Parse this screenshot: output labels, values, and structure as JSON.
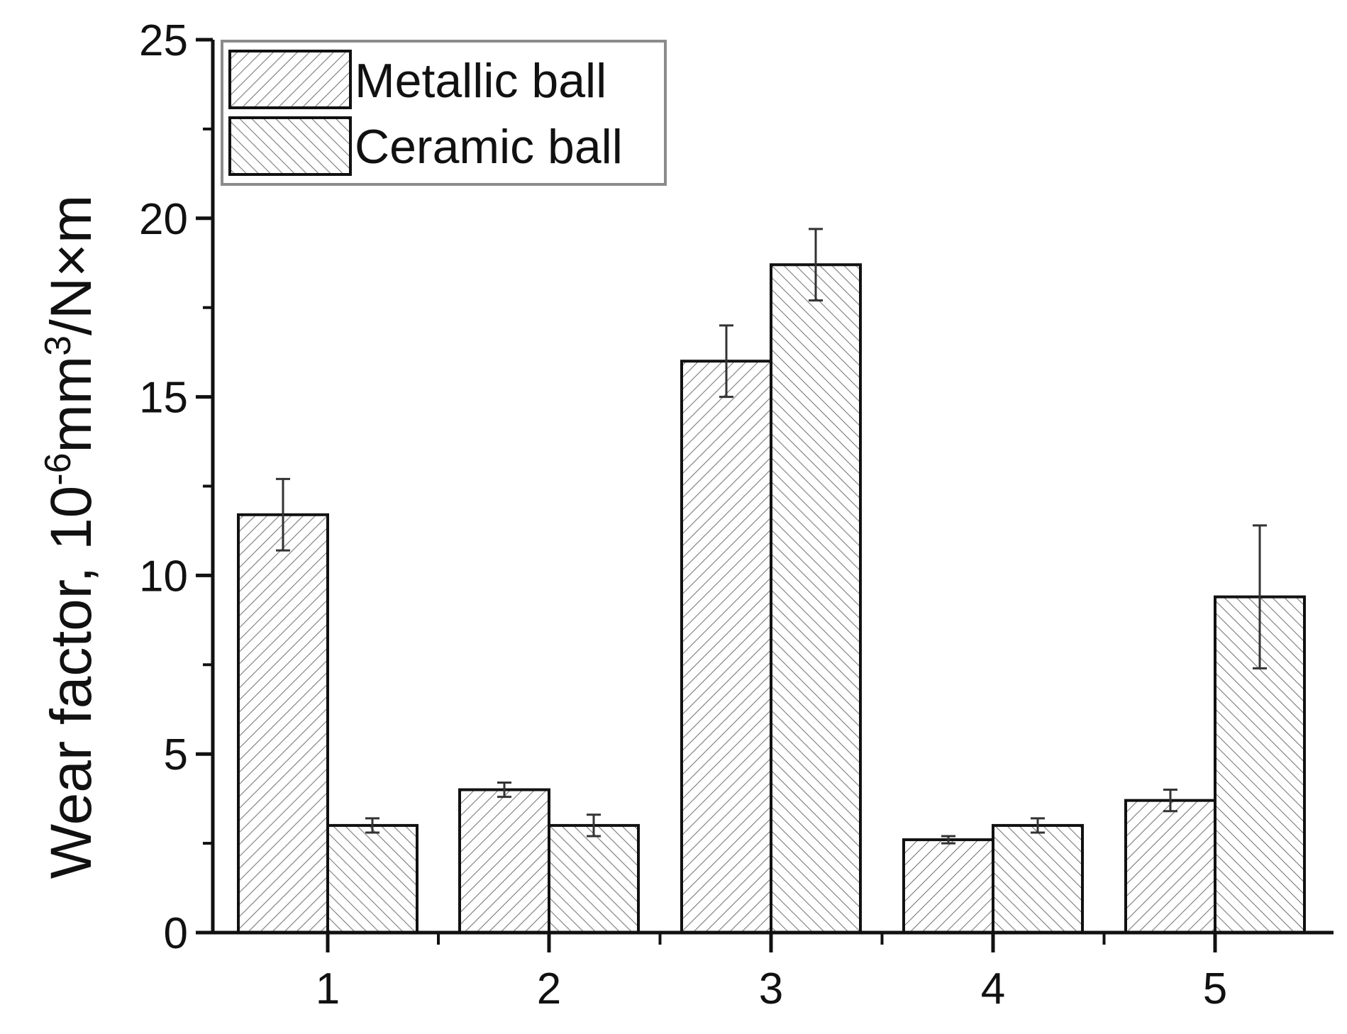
{
  "chart_data": {
    "type": "bar",
    "title": "",
    "xlabel": "",
    "ylabel_main": "Wear factor, 10",
    "ylabel_exp1": "-6",
    "ylabel_mid": "mm",
    "ylabel_exp2": "3",
    "ylabel_end": "/N×m",
    "categories": [
      "1",
      "2",
      "3",
      "4",
      "5"
    ],
    "ylim": [
      0,
      25
    ],
    "yticks": [
      "0",
      "5",
      "10",
      "15",
      "20",
      "25"
    ],
    "series": [
      {
        "name": "Metallic ball",
        "values": [
          11.7,
          4.0,
          16.0,
          2.6,
          3.7
        ],
        "errors": [
          1.0,
          0.2,
          1.0,
          0.1,
          0.3
        ],
        "hatch": "forward-diagonal"
      },
      {
        "name": "Ceramic ball",
        "values": [
          3.0,
          3.0,
          18.7,
          3.0,
          9.4
        ],
        "errors": [
          0.2,
          0.3,
          1.0,
          0.2,
          2.0
        ],
        "hatch": "backward-diagonal"
      }
    ],
    "legend_position": "top-left",
    "grid": false,
    "colors": {
      "bar_fill": "#ffffff",
      "hatch": "#777777",
      "outline": "#111111"
    }
  }
}
